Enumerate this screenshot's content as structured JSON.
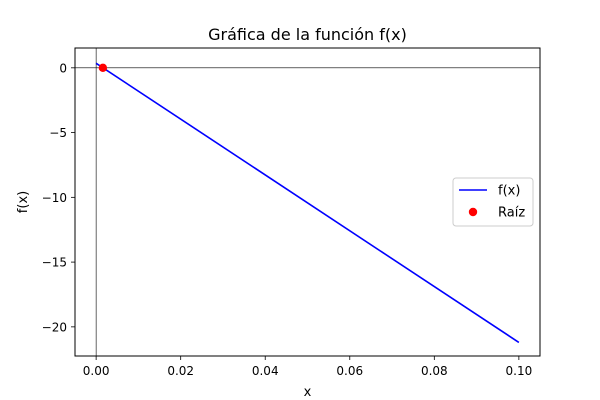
{
  "chart_data": {
    "type": "line",
    "title": "Gráfica de la función f(x)",
    "xlabel": "x",
    "ylabel": "f(x)",
    "xlim": [
      -0.005,
      0.105
    ],
    "ylim": [
      -22.25,
      1.53
    ],
    "xticks": [
      0.0,
      0.02,
      0.04,
      0.06,
      0.08,
      0.1
    ],
    "xtick_labels": [
      "0.00",
      "0.02",
      "0.04",
      "0.06",
      "0.08",
      "0.10"
    ],
    "yticks": [
      0,
      -5,
      -10,
      -15,
      -20
    ],
    "ytick_labels": [
      "0",
      "−5",
      "−10",
      "−15",
      "−20"
    ],
    "grid": false,
    "reference_lines": {
      "horizontal": 0,
      "vertical": 0
    },
    "series": [
      {
        "name": "f(x)",
        "kind": "line",
        "color": "#0000ff",
        "x": [
          0.0,
          0.1
        ],
        "y": [
          0.35,
          -21.2
        ]
      },
      {
        "name": "Raíz",
        "kind": "scatter",
        "color": "#ff0000",
        "x": [
          0.0016
        ],
        "y": [
          0.0
        ]
      }
    ],
    "legend": {
      "placement": "center-right"
    }
  }
}
